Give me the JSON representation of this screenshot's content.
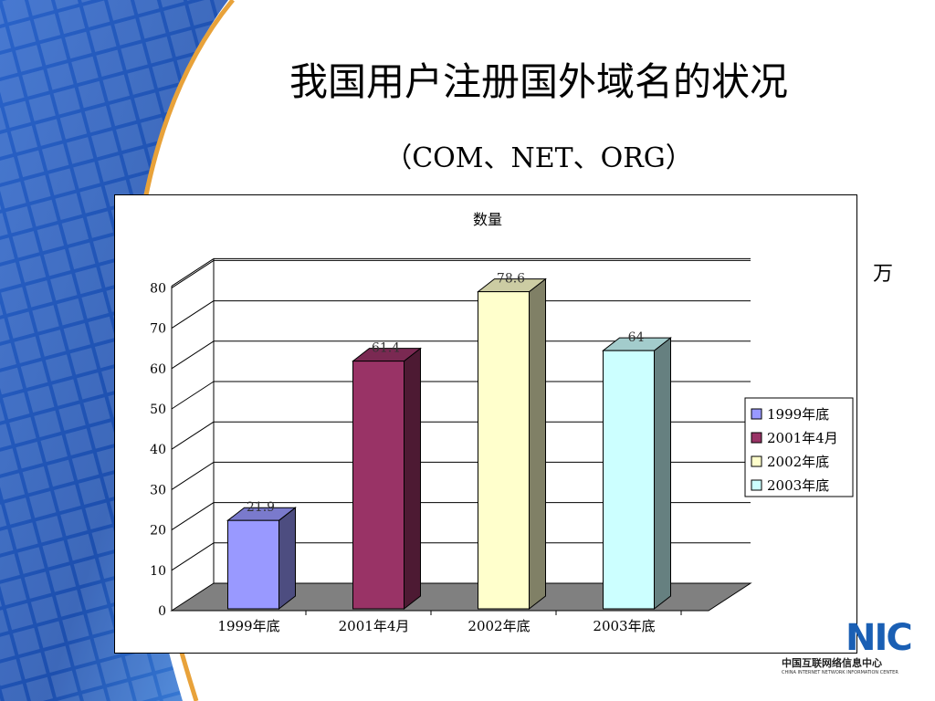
{
  "slide": {
    "title": "我国用户注册国外域名的状况",
    "subtitle": "（COM、NET、ORG）",
    "unit": "万"
  },
  "logo": {
    "mark": "NIC",
    "name_cn": "中国互联网络信息中心",
    "name_en": "CHINA INTERNET NETWORK INFORMATION CENTER"
  },
  "chart_data": {
    "type": "bar",
    "title": "数量",
    "categories": [
      "1999年底",
      "2001年4月",
      "2002年底",
      "2003年底"
    ],
    "values": [
      21.9,
      61.4,
      78.6,
      64
    ],
    "data_labels": [
      "21.9",
      "61.4",
      "78.6",
      "64"
    ],
    "colors": [
      "#9999ff",
      "#993366",
      "#ffffcc",
      "#ccffff"
    ],
    "ylim": [
      0,
      80
    ],
    "yticks": [
      0,
      10,
      20,
      30,
      40,
      50,
      60,
      70,
      80
    ],
    "grid": true,
    "legend_position": "right",
    "legend": [
      "1999年底",
      "2001年4月",
      "2002年底",
      "2003年底"
    ],
    "three_d": true
  }
}
